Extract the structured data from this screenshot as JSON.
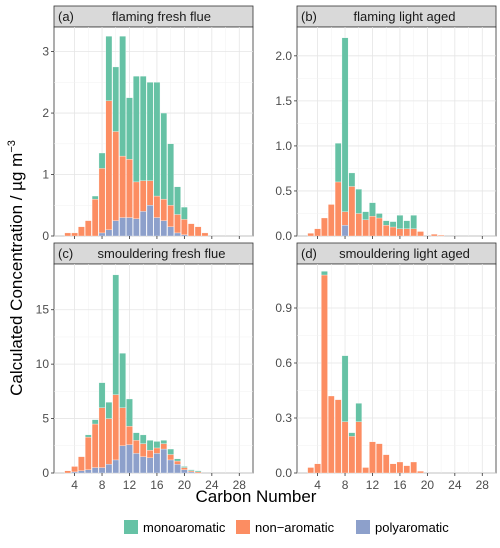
{
  "figure": {
    "ylabel": "Calculated Concentration / µg m",
    "ylabel_sup": "−3",
    "xlabel": "Carbon Number"
  },
  "legend": {
    "position": "bottom",
    "items": [
      {
        "name": "monoaromatic",
        "color": "#66c2a5"
      },
      {
        "name": "non−aromatic",
        "color": "#fc8d62"
      },
      {
        "name": "polyaromatic",
        "color": "#8da0cb"
      }
    ]
  },
  "chart_data": [
    {
      "type": "bar",
      "stacked": true,
      "panel": "(a)",
      "title": "flaming fresh flue",
      "x": [
        3,
        4,
        5,
        6,
        7,
        8,
        9,
        10,
        11,
        12,
        13,
        14,
        15,
        16,
        17,
        18,
        19,
        20,
        21,
        22,
        23
      ],
      "series": [
        {
          "name": "polyaromatic",
          "values": [
            0,
            0,
            0,
            0,
            0,
            0.05,
            0.1,
            0.25,
            0.3,
            0.3,
            0.28,
            0.4,
            0.5,
            0.3,
            0.25,
            0.15,
            0.05,
            0.02,
            0,
            0,
            0
          ]
        },
        {
          "name": "non−aromatic",
          "values": [
            0.05,
            0.05,
            0.15,
            0.25,
            0.6,
            1.05,
            2.1,
            1.45,
            1.0,
            0.95,
            0.6,
            0.5,
            0.4,
            0.35,
            0.35,
            0.35,
            0.3,
            0.25,
            0.2,
            0.15,
            0.05
          ]
        },
        {
          "name": "monoaromatic",
          "values": [
            0,
            0,
            0,
            0,
            0.05,
            0.25,
            1.05,
            1.05,
            1.95,
            1.0,
            1.72,
            1.7,
            1.6,
            1.85,
            1.4,
            1.0,
            0.45,
            0.2,
            0,
            0,
            0
          ]
        }
      ],
      "ylim": [
        0,
        3.4
      ],
      "yticks": [
        0,
        1,
        2,
        3
      ],
      "xlim": [
        1,
        30
      ],
      "xticks": [
        4,
        8,
        12,
        16,
        20,
        24,
        28
      ]
    },
    {
      "type": "bar",
      "stacked": true,
      "panel": "(b)",
      "title": "flaming light aged",
      "x": [
        3,
        4,
        5,
        6,
        7,
        8,
        9,
        10,
        11,
        12,
        13,
        14,
        15,
        16,
        17,
        18,
        19,
        20,
        21,
        22,
        23
      ],
      "series": [
        {
          "name": "polyaromatic",
          "values": [
            0,
            0,
            0,
            0,
            0,
            0.12,
            0,
            0,
            0,
            0,
            0,
            0,
            0,
            0,
            0,
            0,
            0,
            0,
            0,
            0,
            0
          ]
        },
        {
          "name": "non−aromatic",
          "values": [
            0.03,
            0.08,
            0.2,
            0.35,
            0.6,
            0.15,
            0.55,
            0.25,
            0.18,
            0.22,
            0.2,
            0.12,
            0.1,
            0.08,
            0.08,
            0.08,
            0.05,
            0,
            0.02,
            0.01,
            0
          ]
        },
        {
          "name": "monoaromatic",
          "values": [
            0,
            0,
            0,
            0,
            0.43,
            1.93,
            0.15,
            0.27,
            0.09,
            0.15,
            0.05,
            0.05,
            0.06,
            0.15,
            0.09,
            0.15,
            0,
            0,
            0,
            0,
            0
          ]
        }
      ],
      "ylim": [
        0,
        2.32
      ],
      "yticks": [
        0.0,
        0.5,
        1.0,
        1.5,
        2.0
      ],
      "xlim": [
        1,
        30
      ],
      "xticks": [
        4,
        8,
        12,
        16,
        20,
        24,
        28
      ]
    },
    {
      "type": "bar",
      "stacked": true,
      "panel": "(c)",
      "title": "smouldering fresh flue",
      "x": [
        3,
        4,
        5,
        6,
        7,
        8,
        9,
        10,
        11,
        12,
        13,
        14,
        15,
        16,
        17,
        18,
        19,
        20,
        21,
        22
      ],
      "series": [
        {
          "name": "polyaromatic",
          "values": [
            0,
            0.1,
            0.2,
            0.3,
            0.5,
            0.5,
            0.8,
            1.2,
            2.5,
            2.6,
            1.8,
            1.5,
            1.4,
            1.8,
            2.2,
            1.2,
            0.8,
            0.3,
            0.1,
            0
          ]
        },
        {
          "name": "non−aromatic",
          "values": [
            0.2,
            0.5,
            1.3,
            3.0,
            4.0,
            5.5,
            4.2,
            6.0,
            3.5,
            1.7,
            1.2,
            1.2,
            0.7,
            0.5,
            0.5,
            0.5,
            0.3,
            0.2,
            0.1,
            0.1
          ]
        },
        {
          "name": "monoaromatic",
          "values": [
            0,
            0,
            0,
            0.2,
            0.4,
            2.3,
            1.5,
            11.0,
            5.0,
            2.5,
            0.7,
            0.8,
            0.9,
            0.6,
            0.3,
            0.5,
            0.2,
            0.1,
            0.1,
            0.1
          ]
        }
      ],
      "ylim": [
        0,
        19.2
      ],
      "yticks": [
        0,
        5,
        10,
        15
      ],
      "xlim": [
        1,
        30
      ],
      "xticks": [
        4,
        8,
        12,
        16,
        20,
        24,
        28
      ]
    },
    {
      "type": "bar",
      "stacked": true,
      "panel": "(d)",
      "title": "smouldering light aged",
      "x": [
        3,
        4,
        5,
        6,
        7,
        8,
        9,
        10,
        11,
        12,
        13,
        14,
        15,
        16,
        17,
        18,
        19,
        20
      ],
      "series": [
        {
          "name": "polyaromatic",
          "values": [
            0,
            0,
            0,
            0,
            0,
            0,
            0,
            0,
            0,
            0,
            0,
            0,
            0,
            0,
            0,
            0,
            0,
            0
          ]
        },
        {
          "name": "non−aromatic",
          "values": [
            0.03,
            0.05,
            1.08,
            0.42,
            0.4,
            0.28,
            0.2,
            0.28,
            0.03,
            0.17,
            0.16,
            0.1,
            0.05,
            0.06,
            0.04,
            0.06,
            0.01,
            0
          ]
        },
        {
          "name": "monoaromatic",
          "values": [
            0,
            0,
            0.02,
            0,
            0,
            0.36,
            0.02,
            0.1,
            0,
            0,
            0,
            0,
            0,
            0,
            0,
            0,
            0,
            0
          ]
        }
      ],
      "ylim": [
        0,
        1.14
      ],
      "yticks": [
        0.0,
        0.3,
        0.6,
        0.9
      ],
      "xlim": [
        1,
        30
      ],
      "xticks": [
        4,
        8,
        12,
        16,
        20,
        24,
        28
      ]
    }
  ]
}
